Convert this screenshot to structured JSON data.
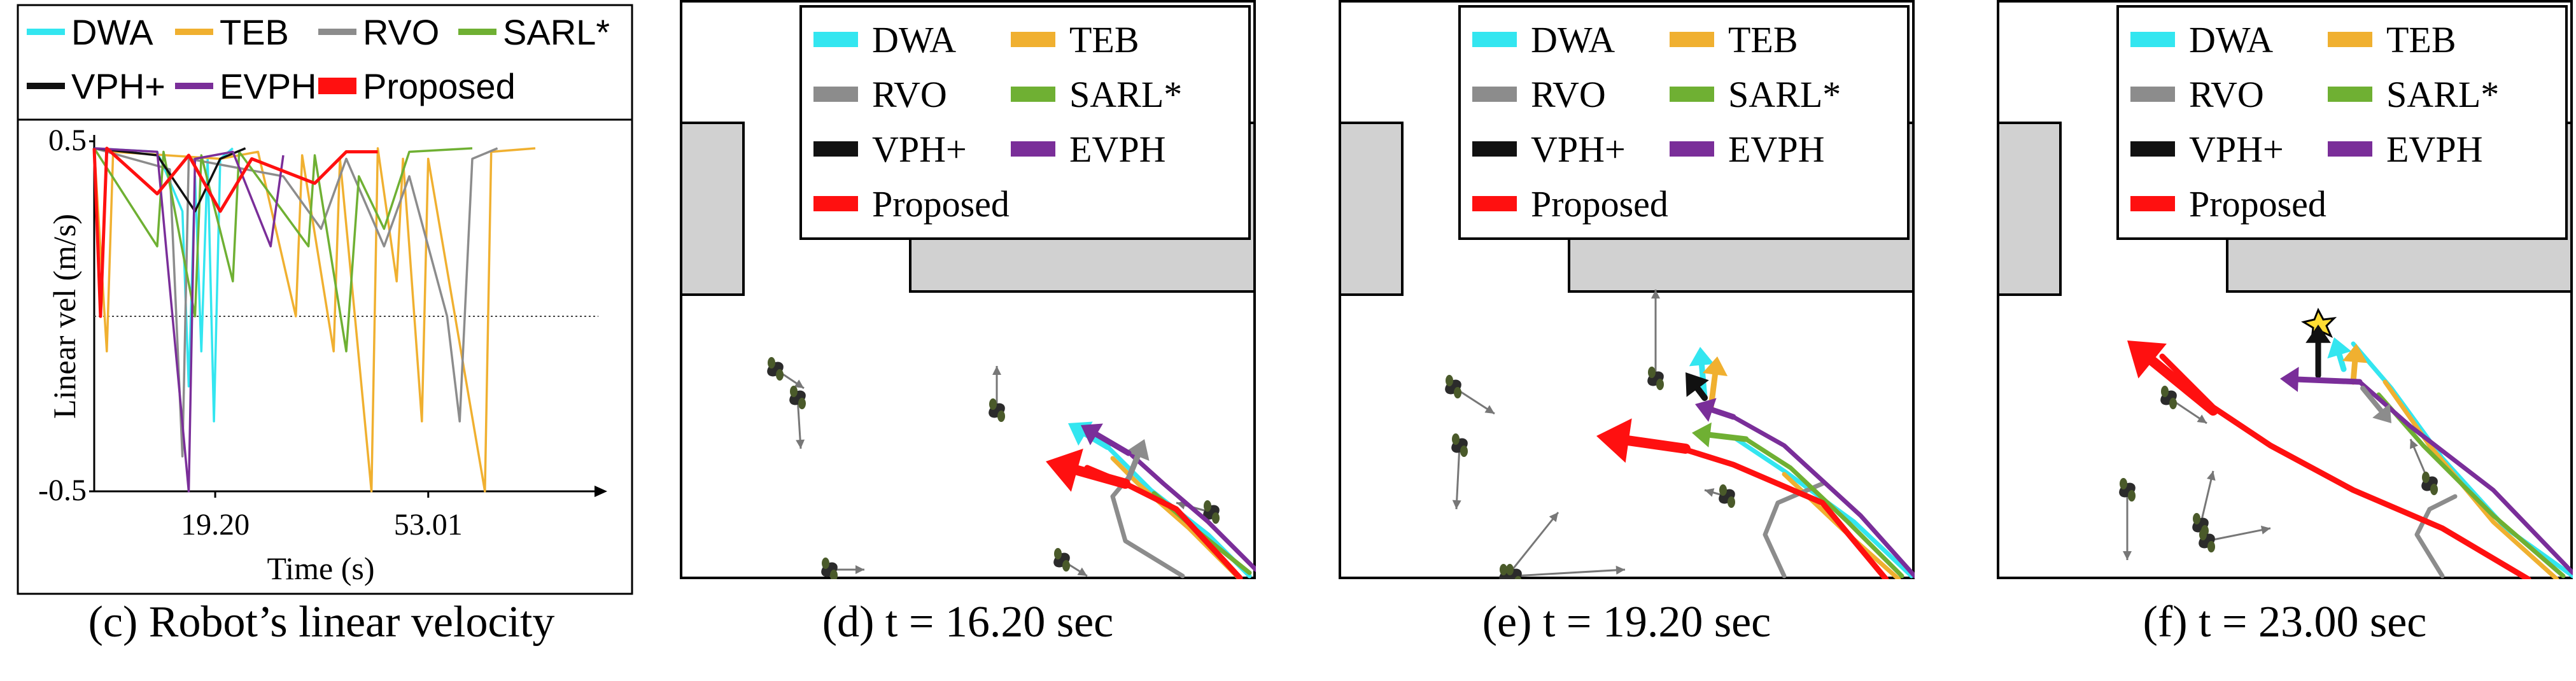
{
  "colors": {
    "DWA": "#33e6f0",
    "TEB": "#f0b030",
    "RVO": "#8c8c8c",
    "SARL*": "#6fb033",
    "VPH+": "#111111",
    "EVPH": "#7a2e99",
    "Proposed": "#ff1010",
    "obstacle": "#d1d1d1",
    "agent_arrow": "#777777"
  },
  "legend_items": [
    "DWA",
    "TEB",
    "RVO",
    "SARL*",
    "VPH+",
    "EVPH",
    "Proposed"
  ],
  "captions": {
    "c": "(c) Robot’s linear velocity",
    "d": "(d) t = 16.20 sec",
    "e": "(e) t = 19.20 sec",
    "f": "(f) t = 23.00 sec"
  },
  "chart_data": [
    {
      "type": "line",
      "title": "",
      "xlabel": "Time (s)",
      "ylabel": "Linear vel (m/s)",
      "ylim": [
        -0.5,
        0.5
      ],
      "xlim": [
        0,
        80
      ],
      "x_ticks": [
        19.2,
        53.01
      ],
      "x_tick_labels": [
        "19.20",
        "53.01"
      ],
      "y_tick_labels": [
        "0.5",
        "-0.5"
      ],
      "reference_line_y": 0,
      "legend_position": "top",
      "series": [
        {
          "name": "DWA",
          "points": [
            [
              0,
              0.48
            ],
            [
              10,
              0.47
            ],
            [
              14,
              0.3
            ],
            [
              15,
              -0.2
            ],
            [
              16,
              0.4
            ],
            [
              17,
              -0.1
            ],
            [
              18,
              0.45
            ],
            [
              19,
              -0.3
            ],
            [
              20,
              0.45
            ],
            [
              22,
              0.48
            ]
          ]
        },
        {
          "name": "TEB",
          "points": [
            [
              0,
              0.48
            ],
            [
              2,
              -0.1
            ],
            [
              3,
              0.47
            ],
            [
              20,
              0.45
            ],
            [
              26,
              0.47
            ],
            [
              32,
              0.0
            ],
            [
              33,
              0.46
            ],
            [
              38,
              -0.1
            ],
            [
              39,
              0.45
            ],
            [
              44,
              -0.5
            ],
            [
              45,
              0.48
            ],
            [
              48,
              0.1
            ],
            [
              49,
              0.45
            ],
            [
              52,
              -0.3
            ],
            [
              53,
              0.45
            ],
            [
              62,
              -0.5
            ],
            [
              63,
              0.47
            ],
            [
              70,
              0.48
            ]
          ]
        },
        {
          "name": "RVO",
          "points": [
            [
              0,
              0.48
            ],
            [
              12,
              0.42
            ],
            [
              14,
              -0.4
            ],
            [
              15,
              0.45
            ],
            [
              30,
              0.4
            ],
            [
              36,
              0.25
            ],
            [
              40,
              0.45
            ],
            [
              46,
              0.2
            ],
            [
              50,
              0.4
            ],
            [
              56,
              0.0
            ],
            [
              58,
              -0.3
            ],
            [
              60,
              0.45
            ],
            [
              64,
              0.48
            ]
          ]
        },
        {
          "name": "SARL*",
          "points": [
            [
              0,
              0.48
            ],
            [
              10,
              0.2
            ],
            [
              11,
              0.47
            ],
            [
              16,
              0.0
            ],
            [
              17,
              0.46
            ],
            [
              22,
              0.1
            ],
            [
              23,
              0.47
            ],
            [
              34,
              0.2
            ],
            [
              35,
              0.46
            ],
            [
              40,
              -0.1
            ],
            [
              42,
              0.4
            ],
            [
              46,
              0.25
            ],
            [
              50,
              0.47
            ],
            [
              60,
              0.48
            ]
          ]
        },
        {
          "name": "VPH+",
          "points": [
            [
              0,
              0.48
            ],
            [
              10,
              0.46
            ],
            [
              16,
              0.3
            ],
            [
              20,
              0.45
            ],
            [
              24,
              0.48
            ]
          ]
        },
        {
          "name": "EVPH",
          "points": [
            [
              0,
              0.48
            ],
            [
              10,
              0.47
            ],
            [
              15,
              -0.5
            ],
            [
              16,
              0.45
            ],
            [
              22,
              0.47
            ],
            [
              28,
              0.2
            ],
            [
              30,
              0.46
            ]
          ]
        },
        {
          "name": "Proposed",
          "points": [
            [
              0,
              0.48
            ],
            [
              1,
              0.0
            ],
            [
              2,
              0.48
            ],
            [
              10,
              0.35
            ],
            [
              15,
              0.46
            ],
            [
              20,
              0.3
            ],
            [
              25,
              0.45
            ],
            [
              35,
              0.38
            ],
            [
              40,
              0.47
            ],
            [
              45,
              0.47
            ]
          ]
        }
      ]
    }
  ]
}
